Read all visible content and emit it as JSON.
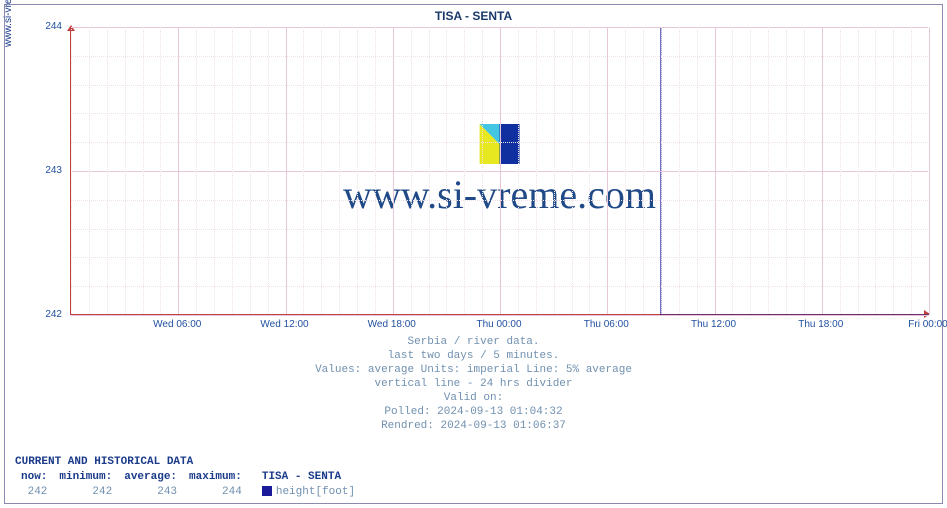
{
  "title": "TISA -  SENTA",
  "sidetext": "www.si-vreme.com",
  "chart": {
    "type": "line",
    "background_color": "#ffffff",
    "axis_color": "#c04040",
    "grid_major_color": "#e8c8d8",
    "grid_minor_color": "#f0e0e8",
    "series_color": "#1a1a9a",
    "line_width": 1,
    "ylim": [
      242,
      244
    ],
    "yticks": [
      242,
      243,
      244
    ],
    "y_minor_step": 0.2,
    "xticks": [
      "Wed 06:00",
      "Wed 12:00",
      "Wed 18:00",
      "Thu 00:00",
      "Thu 06:00",
      "Thu 12:00",
      "Thu 18:00",
      "Fri 00:00"
    ],
    "xtick_positions_hr": [
      6,
      12,
      18,
      24,
      30,
      36,
      42,
      48
    ],
    "x_range_hr": [
      0,
      48
    ],
    "x_minor_step_hr": 1,
    "data_points_hr_val": [
      [
        0,
        244
      ],
      [
        33,
        244
      ],
      [
        33,
        242
      ],
      [
        48,
        242
      ]
    ],
    "data_gap_hr": null,
    "tick_fontsize": 10,
    "tick_color": "#2050a0"
  },
  "watermark": {
    "text": "www.si-vreme.com",
    "text_color": "#204a87",
    "text_fontsize": 40,
    "logo_colors": [
      "#e8e820",
      "#30c0e0",
      "#1030a0"
    ]
  },
  "caption": {
    "l1": "Serbia / river data.",
    "l2": "last two days / 5 minutes.",
    "l3": "Values: average  Units: imperial  Line: 5% average",
    "l4": "vertical line - 24 hrs  divider",
    "l5": "Valid on:",
    "l6": "Polled: 2024-09-13 01:04:32",
    "l7": "Rendred: 2024-09-13 01:06:37",
    "color": "#7090b0",
    "fontsize": 11
  },
  "stats": {
    "header": "CURRENT AND HISTORICAL DATA",
    "columns": [
      "now:",
      "minimum:",
      "average:",
      "maximum:"
    ],
    "name": "TISA -  SENTA",
    "values": [
      "242",
      "242",
      "243",
      "244"
    ],
    "legend_label": "height[foot]",
    "legend_color": "#1a1a9a"
  }
}
